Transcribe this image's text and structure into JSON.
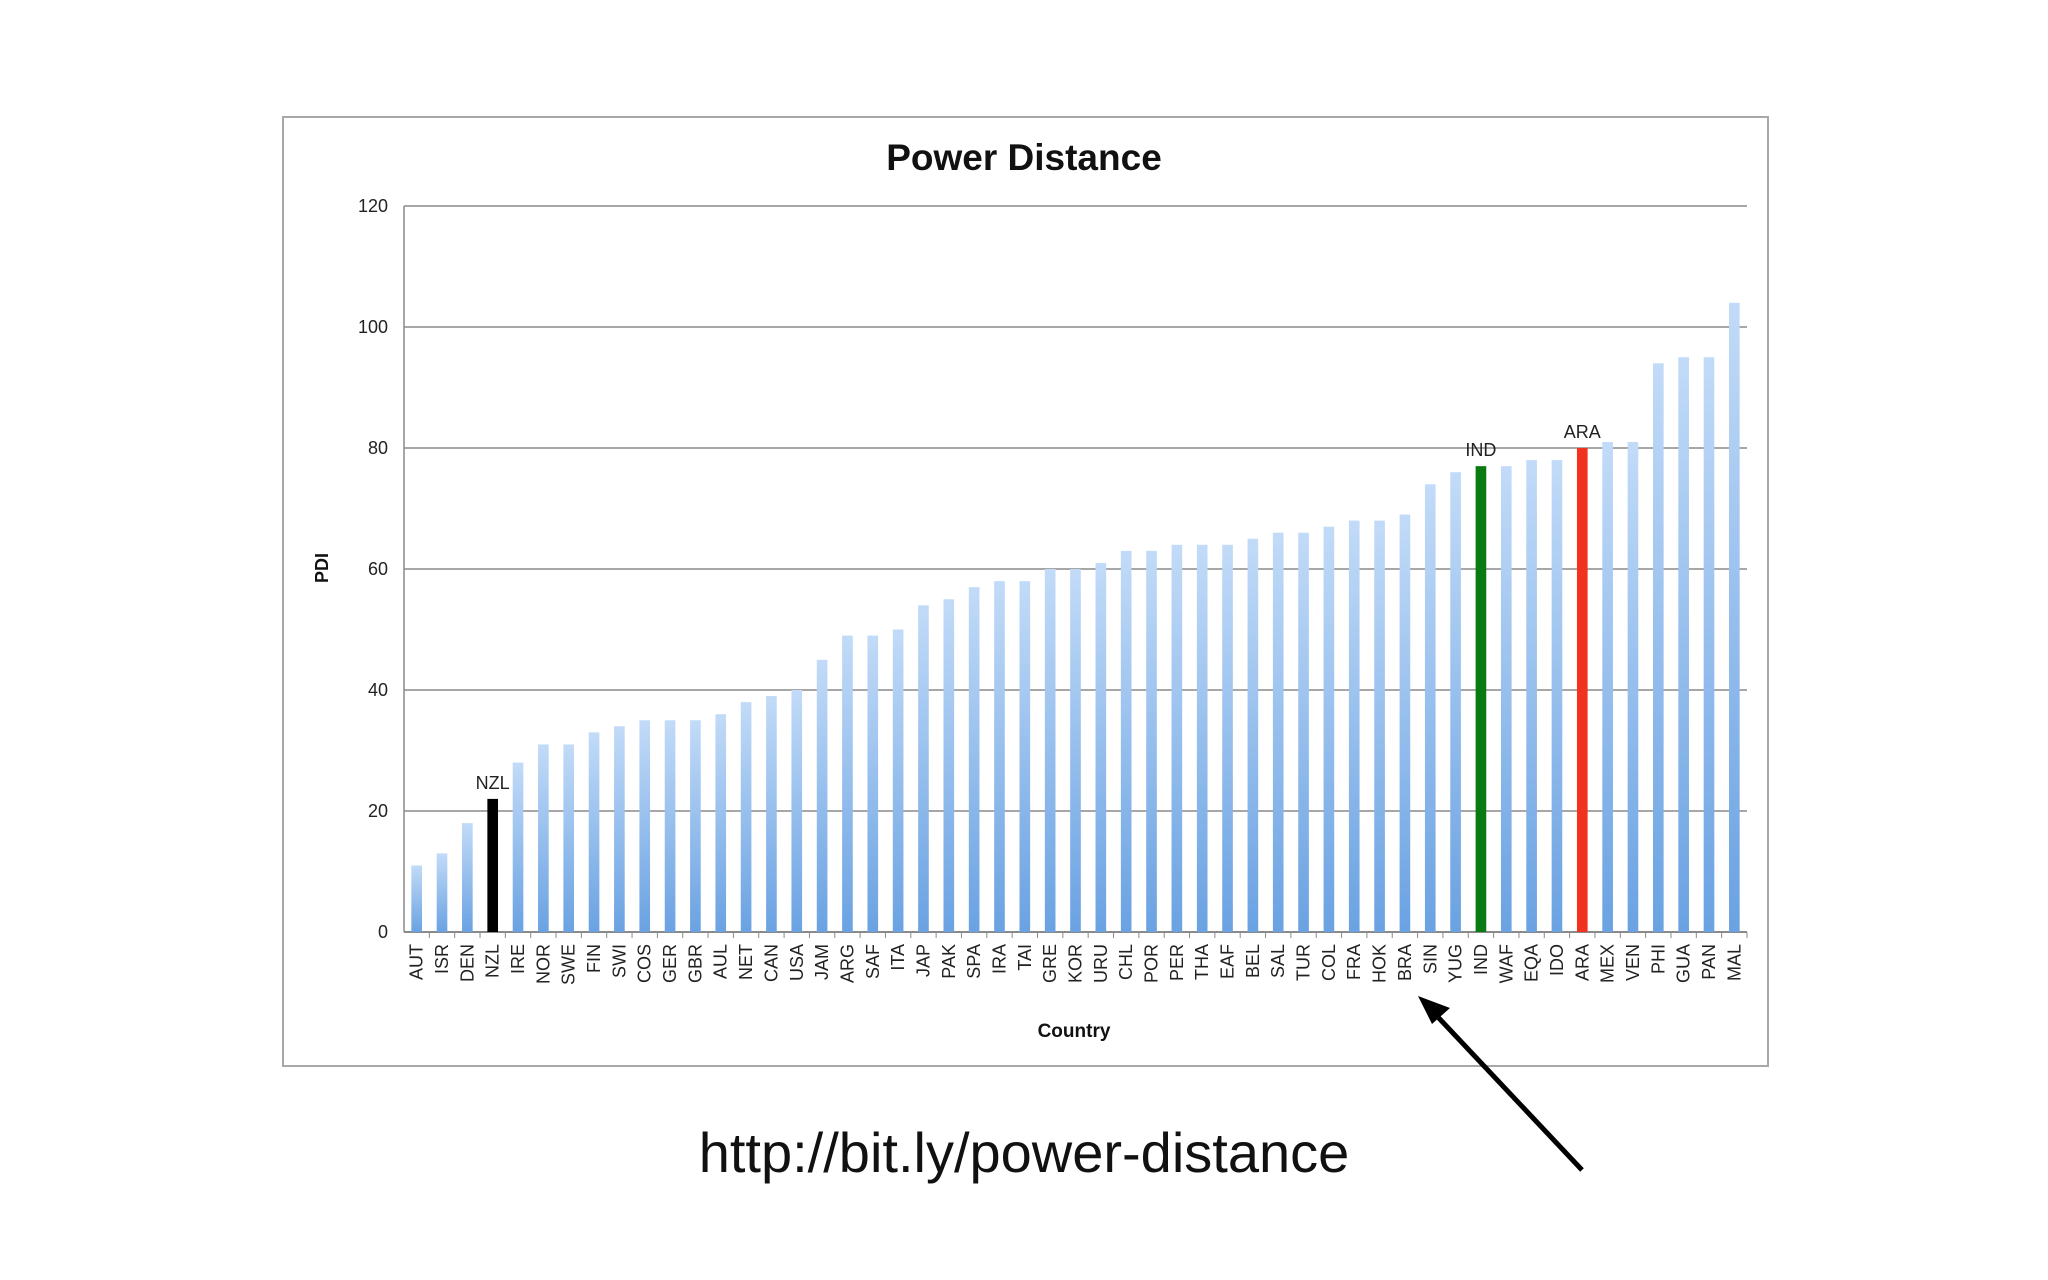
{
  "caption": {
    "url": "http://bit.ly/power-distance"
  },
  "colors": {
    "bar": "#8fb9ea",
    "bar_light": "#c2dbf8",
    "highlight_nzl": "#000000",
    "highlight_ind": "#0a7a12",
    "highlight_ara": "#f0321e",
    "grid": "#8a8a8a",
    "arrow": "#000000"
  },
  "arrow_target": "BRA",
  "chart_data": {
    "type": "bar",
    "title": "Power Distance",
    "xlabel": "Country",
    "ylabel": "PDI",
    "ylim": [
      0,
      120
    ],
    "yticks": [
      0,
      20,
      40,
      60,
      80,
      100,
      120
    ],
    "grid": true,
    "categories": [
      "AUT",
      "ISR",
      "DEN",
      "NZL",
      "IRE",
      "NOR",
      "SWE",
      "FIN",
      "SWI",
      "COS",
      "GER",
      "GBR",
      "AUL",
      "NET",
      "CAN",
      "USA",
      "JAM",
      "ARG",
      "SAF",
      "ITA",
      "JAP",
      "PAK",
      "SPA",
      "IRA",
      "TAI",
      "GRE",
      "KOR",
      "URU",
      "CHL",
      "POR",
      "PER",
      "THA",
      "EAF",
      "BEL",
      "SAL",
      "TUR",
      "COL",
      "FRA",
      "HOK",
      "BRA",
      "SIN",
      "YUG",
      "IND",
      "WAF",
      "EQA",
      "IDO",
      "ARA",
      "MEX",
      "VEN",
      "PHI",
      "GUA",
      "PAN",
      "MAL"
    ],
    "values": [
      11,
      13,
      18,
      22,
      28,
      31,
      31,
      33,
      34,
      35,
      35,
      35,
      36,
      38,
      39,
      40,
      45,
      49,
      49,
      50,
      54,
      55,
      57,
      58,
      58,
      60,
      60,
      61,
      63,
      63,
      64,
      64,
      64,
      65,
      66,
      66,
      67,
      68,
      68,
      69,
      74,
      76,
      77,
      77,
      78,
      78,
      80,
      81,
      81,
      94,
      95,
      95,
      104
    ],
    "highlights": [
      {
        "category": "NZL",
        "label": "NZL",
        "color": "#000000"
      },
      {
        "category": "IND",
        "label": "IND",
        "color": "#0a7a12"
      },
      {
        "category": "ARA",
        "label": "ARA",
        "color": "#f0321e"
      }
    ]
  }
}
